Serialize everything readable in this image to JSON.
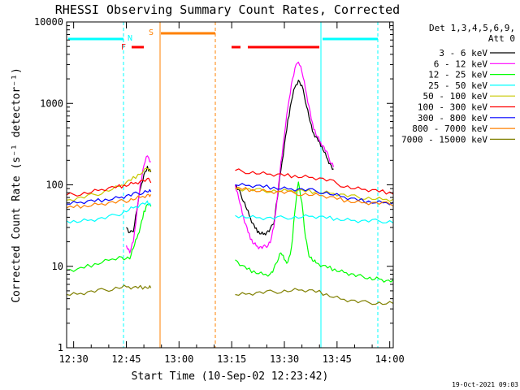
{
  "chart_data": {
    "type": "line",
    "title": "RHESSI Observing Summary Count Rates, Corrected",
    "xlabel": "Start Time (10-Sep-02 12:23:42)",
    "ylabel": "Corrected Count Rate (s⁻¹ detector⁻¹)",
    "y_scale": "log",
    "ylim": [
      1,
      10000
    ],
    "xlim_minutes_after_1223": [
      5,
      98
    ],
    "x_tick_labels": [
      "12:30",
      "12:45",
      "13:00",
      "13:15",
      "13:30",
      "13:45",
      "14:00"
    ],
    "x_ticks_minutes_after_1223": [
      7,
      22,
      37,
      52,
      67,
      82,
      97
    ],
    "y_tick_labels": [
      "1",
      "10",
      "100",
      "1000",
      "10000"
    ],
    "y_ticks": [
      1,
      10,
      100,
      1000,
      10000
    ],
    "legend_header": "Det 1,3,4,5,6,9,\n  Att 0",
    "legend_position": "right",
    "footer": "19-Oct-2021 09:03",
    "flag_labels": [
      "F",
      "N",
      "S"
    ],
    "flag_label_colors": [
      "#ff0000",
      "#00ffff",
      "#ff8000"
    ],
    "segments": [
      [
        5,
        29.5
      ],
      [
        53,
        98
      ]
    ],
    "series": [
      {
        "name": "3 - 6 keV",
        "color": "#000000",
        "x": [
          22,
          23,
          24,
          25,
          26,
          27,
          28,
          29,
          53,
          54,
          55,
          56,
          57,
          58,
          59,
          60,
          61,
          62,
          63,
          64,
          65,
          66,
          67,
          68,
          69,
          70,
          71,
          72,
          73,
          74,
          75,
          76,
          77,
          78,
          79,
          80,
          81
        ],
        "y": [
          30,
          25,
          28,
          50,
          90,
          130,
          160,
          150,
          100,
          85,
          70,
          55,
          42,
          33,
          28,
          26,
          25,
          26,
          28,
          35,
          70,
          150,
          300,
          600,
          1100,
          1600,
          1900,
          1600,
          1100,
          700,
          450,
          380,
          330,
          280,
          220,
          180,
          150
        ]
      },
      {
        "name": "6 - 12 keV",
        "color": "#ff00ff",
        "x": [
          22,
          23,
          24,
          25,
          26,
          27,
          28,
          29,
          53,
          54,
          55,
          56,
          57,
          58,
          59,
          60,
          61,
          62,
          63,
          64,
          65,
          66,
          67,
          68,
          69,
          70,
          71,
          72,
          73,
          74,
          75,
          76,
          77,
          78,
          79,
          80,
          81
        ],
        "y": [
          18,
          15,
          20,
          45,
          100,
          180,
          230,
          190,
          100,
          70,
          45,
          32,
          24,
          20,
          18,
          17,
          17,
          18,
          20,
          30,
          70,
          180,
          420,
          900,
          1700,
          2600,
          3400,
          2500,
          1500,
          900,
          550,
          430,
          350,
          300,
          250,
          200,
          170
        ]
      },
      {
        "name": "12 - 25 keV",
        "color": "#00ff00",
        "x": [
          5,
          8,
          11,
          14,
          17,
          20,
          22,
          23,
          24,
          25,
          26,
          27,
          28,
          29,
          53,
          55,
          57,
          59,
          61,
          63,
          64,
          65,
          66,
          67,
          68,
          69,
          70,
          71,
          72,
          73,
          74,
          75,
          76,
          78,
          80,
          82,
          84,
          86,
          88,
          90,
          92,
          94,
          96,
          98
        ],
        "y": [
          9,
          9,
          10,
          11,
          12,
          13,
          12,
          13,
          17,
          22,
          30,
          45,
          60,
          55,
          12,
          10,
          9,
          8.5,
          8,
          8,
          9,
          12,
          15,
          12,
          11,
          16,
          50,
          110,
          60,
          22,
          14,
          12,
          11,
          10,
          9.5,
          9,
          8.5,
          8,
          7.5,
          7.5,
          7,
          7,
          6.5,
          6.5
        ]
      },
      {
        "name": "25 - 50 keV",
        "color": "#00ffff",
        "x": [
          5,
          8,
          11,
          14,
          17,
          20,
          22,
          24,
          26,
          28,
          29,
          53,
          56,
          59,
          62,
          65,
          68,
          71,
          74,
          77,
          80,
          83,
          86,
          89,
          92,
          95,
          98
        ],
        "y": [
          36,
          36,
          37,
          38,
          40,
          44,
          48,
          52,
          56,
          60,
          58,
          42,
          41,
          40,
          39,
          39,
          40,
          40,
          41,
          40,
          39,
          38,
          37,
          36,
          36,
          36,
          35
        ]
      },
      {
        "name": "50 - 100 keV",
        "color": "#c8c800",
        "x": [
          5,
          8,
          11,
          14,
          17,
          20,
          22,
          24,
          26,
          28,
          29,
          53,
          56,
          59,
          62,
          65,
          68,
          71,
          74,
          77,
          80,
          83,
          86,
          89,
          92,
          95,
          98
        ],
        "y": [
          65,
          68,
          72,
          78,
          86,
          95,
          105,
          120,
          140,
          160,
          150,
          90,
          88,
          86,
          85,
          84,
          84,
          84,
          83,
          82,
          80,
          76,
          72,
          70,
          68,
          66,
          65
        ]
      },
      {
        "name": "100 - 300 keV",
        "color": "#ff0000",
        "x": [
          5,
          8,
          11,
          14,
          17,
          20,
          22,
          24,
          26,
          28,
          29,
          53,
          56,
          59,
          62,
          65,
          68,
          71,
          74,
          77,
          80,
          83,
          86,
          89,
          92,
          95,
          98
        ],
        "y": [
          75,
          77,
          80,
          85,
          90,
          95,
          100,
          105,
          110,
          115,
          112,
          150,
          145,
          140,
          135,
          132,
          130,
          128,
          125,
          120,
          112,
          100,
          92,
          88,
          85,
          82,
          80
        ]
      },
      {
        "name": "300 - 800 keV",
        "color": "#0000ff",
        "x": [
          5,
          8,
          11,
          14,
          17,
          20,
          22,
          24,
          26,
          28,
          29,
          53,
          56,
          59,
          62,
          65,
          68,
          71,
          74,
          77,
          80,
          83,
          86,
          89,
          92,
          95,
          98
        ],
        "y": [
          58,
          60,
          62,
          64,
          67,
          70,
          73,
          76,
          80,
          84,
          82,
          100,
          98,
          96,
          94,
          92,
          90,
          88,
          86,
          83,
          78,
          72,
          67,
          64,
          62,
          61,
          60
        ]
      },
      {
        "name": "800 - 7000 keV",
        "color": "#ff8000",
        "x": [
          5,
          8,
          11,
          14,
          17,
          20,
          22,
          24,
          26,
          28,
          29,
          53,
          56,
          59,
          62,
          65,
          68,
          71,
          74,
          77,
          80,
          83,
          86,
          89,
          92,
          95,
          98
        ],
        "y": [
          52,
          54,
          56,
          58,
          60,
          62,
          64,
          67,
          70,
          74,
          72,
          90,
          88,
          86,
          84,
          82,
          80,
          78,
          76,
          74,
          70,
          66,
          63,
          61,
          60,
          59,
          58
        ]
      },
      {
        "name": "7000 - 15000 keV",
        "color": "#808000",
        "x": [
          5,
          8,
          11,
          14,
          17,
          20,
          22,
          24,
          26,
          28,
          29,
          53,
          56,
          59,
          62,
          65,
          68,
          71,
          74,
          77,
          80,
          83,
          86,
          89,
          92,
          95,
          98
        ],
        "y": [
          4.5,
          4.6,
          4.8,
          5.0,
          5.2,
          5.5,
          5.6,
          5.4,
          5.5,
          5.6,
          5.5,
          4.5,
          4.6,
          4.7,
          4.8,
          4.9,
          5.0,
          5.1,
          5.0,
          4.8,
          4.4,
          4.0,
          3.8,
          3.6,
          3.6,
          3.5,
          3.5
        ]
      }
    ]
  }
}
